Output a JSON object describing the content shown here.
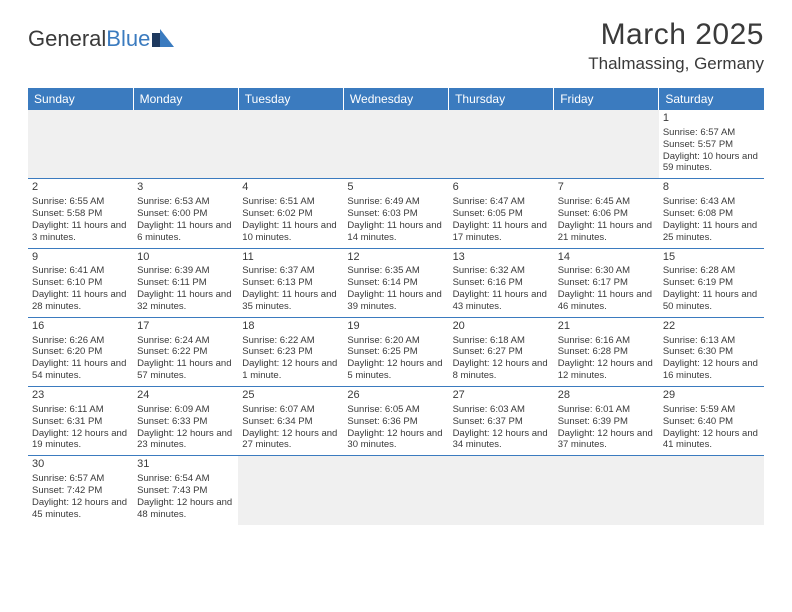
{
  "brand": {
    "name1": "General",
    "name2": "Blue"
  },
  "title": "March 2025",
  "location": "Thalmassing, Germany",
  "colors": {
    "header_bg": "#3b7bbf",
    "header_text": "#ffffff",
    "text": "#3a3a3a",
    "empty_bg": "#f0f0f0",
    "border": "#3b7bbf"
  },
  "days_of_week": [
    "Sunday",
    "Monday",
    "Tuesday",
    "Wednesday",
    "Thursday",
    "Friday",
    "Saturday"
  ],
  "weeks": [
    [
      null,
      null,
      null,
      null,
      null,
      null,
      {
        "n": "1",
        "sr": "Sunrise: 6:57 AM",
        "ss": "Sunset: 5:57 PM",
        "dl": "Daylight: 10 hours and 59 minutes."
      }
    ],
    [
      {
        "n": "2",
        "sr": "Sunrise: 6:55 AM",
        "ss": "Sunset: 5:58 PM",
        "dl": "Daylight: 11 hours and 3 minutes."
      },
      {
        "n": "3",
        "sr": "Sunrise: 6:53 AM",
        "ss": "Sunset: 6:00 PM",
        "dl": "Daylight: 11 hours and 6 minutes."
      },
      {
        "n": "4",
        "sr": "Sunrise: 6:51 AM",
        "ss": "Sunset: 6:02 PM",
        "dl": "Daylight: 11 hours and 10 minutes."
      },
      {
        "n": "5",
        "sr": "Sunrise: 6:49 AM",
        "ss": "Sunset: 6:03 PM",
        "dl": "Daylight: 11 hours and 14 minutes."
      },
      {
        "n": "6",
        "sr": "Sunrise: 6:47 AM",
        "ss": "Sunset: 6:05 PM",
        "dl": "Daylight: 11 hours and 17 minutes."
      },
      {
        "n": "7",
        "sr": "Sunrise: 6:45 AM",
        "ss": "Sunset: 6:06 PM",
        "dl": "Daylight: 11 hours and 21 minutes."
      },
      {
        "n": "8",
        "sr": "Sunrise: 6:43 AM",
        "ss": "Sunset: 6:08 PM",
        "dl": "Daylight: 11 hours and 25 minutes."
      }
    ],
    [
      {
        "n": "9",
        "sr": "Sunrise: 6:41 AM",
        "ss": "Sunset: 6:10 PM",
        "dl": "Daylight: 11 hours and 28 minutes."
      },
      {
        "n": "10",
        "sr": "Sunrise: 6:39 AM",
        "ss": "Sunset: 6:11 PM",
        "dl": "Daylight: 11 hours and 32 minutes."
      },
      {
        "n": "11",
        "sr": "Sunrise: 6:37 AM",
        "ss": "Sunset: 6:13 PM",
        "dl": "Daylight: 11 hours and 35 minutes."
      },
      {
        "n": "12",
        "sr": "Sunrise: 6:35 AM",
        "ss": "Sunset: 6:14 PM",
        "dl": "Daylight: 11 hours and 39 minutes."
      },
      {
        "n": "13",
        "sr": "Sunrise: 6:32 AM",
        "ss": "Sunset: 6:16 PM",
        "dl": "Daylight: 11 hours and 43 minutes."
      },
      {
        "n": "14",
        "sr": "Sunrise: 6:30 AM",
        "ss": "Sunset: 6:17 PM",
        "dl": "Daylight: 11 hours and 46 minutes."
      },
      {
        "n": "15",
        "sr": "Sunrise: 6:28 AM",
        "ss": "Sunset: 6:19 PM",
        "dl": "Daylight: 11 hours and 50 minutes."
      }
    ],
    [
      {
        "n": "16",
        "sr": "Sunrise: 6:26 AM",
        "ss": "Sunset: 6:20 PM",
        "dl": "Daylight: 11 hours and 54 minutes."
      },
      {
        "n": "17",
        "sr": "Sunrise: 6:24 AM",
        "ss": "Sunset: 6:22 PM",
        "dl": "Daylight: 11 hours and 57 minutes."
      },
      {
        "n": "18",
        "sr": "Sunrise: 6:22 AM",
        "ss": "Sunset: 6:23 PM",
        "dl": "Daylight: 12 hours and 1 minute."
      },
      {
        "n": "19",
        "sr": "Sunrise: 6:20 AM",
        "ss": "Sunset: 6:25 PM",
        "dl": "Daylight: 12 hours and 5 minutes."
      },
      {
        "n": "20",
        "sr": "Sunrise: 6:18 AM",
        "ss": "Sunset: 6:27 PM",
        "dl": "Daylight: 12 hours and 8 minutes."
      },
      {
        "n": "21",
        "sr": "Sunrise: 6:16 AM",
        "ss": "Sunset: 6:28 PM",
        "dl": "Daylight: 12 hours and 12 minutes."
      },
      {
        "n": "22",
        "sr": "Sunrise: 6:13 AM",
        "ss": "Sunset: 6:30 PM",
        "dl": "Daylight: 12 hours and 16 minutes."
      }
    ],
    [
      {
        "n": "23",
        "sr": "Sunrise: 6:11 AM",
        "ss": "Sunset: 6:31 PM",
        "dl": "Daylight: 12 hours and 19 minutes."
      },
      {
        "n": "24",
        "sr": "Sunrise: 6:09 AM",
        "ss": "Sunset: 6:33 PM",
        "dl": "Daylight: 12 hours and 23 minutes."
      },
      {
        "n": "25",
        "sr": "Sunrise: 6:07 AM",
        "ss": "Sunset: 6:34 PM",
        "dl": "Daylight: 12 hours and 27 minutes."
      },
      {
        "n": "26",
        "sr": "Sunrise: 6:05 AM",
        "ss": "Sunset: 6:36 PM",
        "dl": "Daylight: 12 hours and 30 minutes."
      },
      {
        "n": "27",
        "sr": "Sunrise: 6:03 AM",
        "ss": "Sunset: 6:37 PM",
        "dl": "Daylight: 12 hours and 34 minutes."
      },
      {
        "n": "28",
        "sr": "Sunrise: 6:01 AM",
        "ss": "Sunset: 6:39 PM",
        "dl": "Daylight: 12 hours and 37 minutes."
      },
      {
        "n": "29",
        "sr": "Sunrise: 5:59 AM",
        "ss": "Sunset: 6:40 PM",
        "dl": "Daylight: 12 hours and 41 minutes."
      }
    ],
    [
      {
        "n": "30",
        "sr": "Sunrise: 6:57 AM",
        "ss": "Sunset: 7:42 PM",
        "dl": "Daylight: 12 hours and 45 minutes."
      },
      {
        "n": "31",
        "sr": "Sunrise: 6:54 AM",
        "ss": "Sunset: 7:43 PM",
        "dl": "Daylight: 12 hours and 48 minutes."
      },
      null,
      null,
      null,
      null,
      null
    ]
  ]
}
